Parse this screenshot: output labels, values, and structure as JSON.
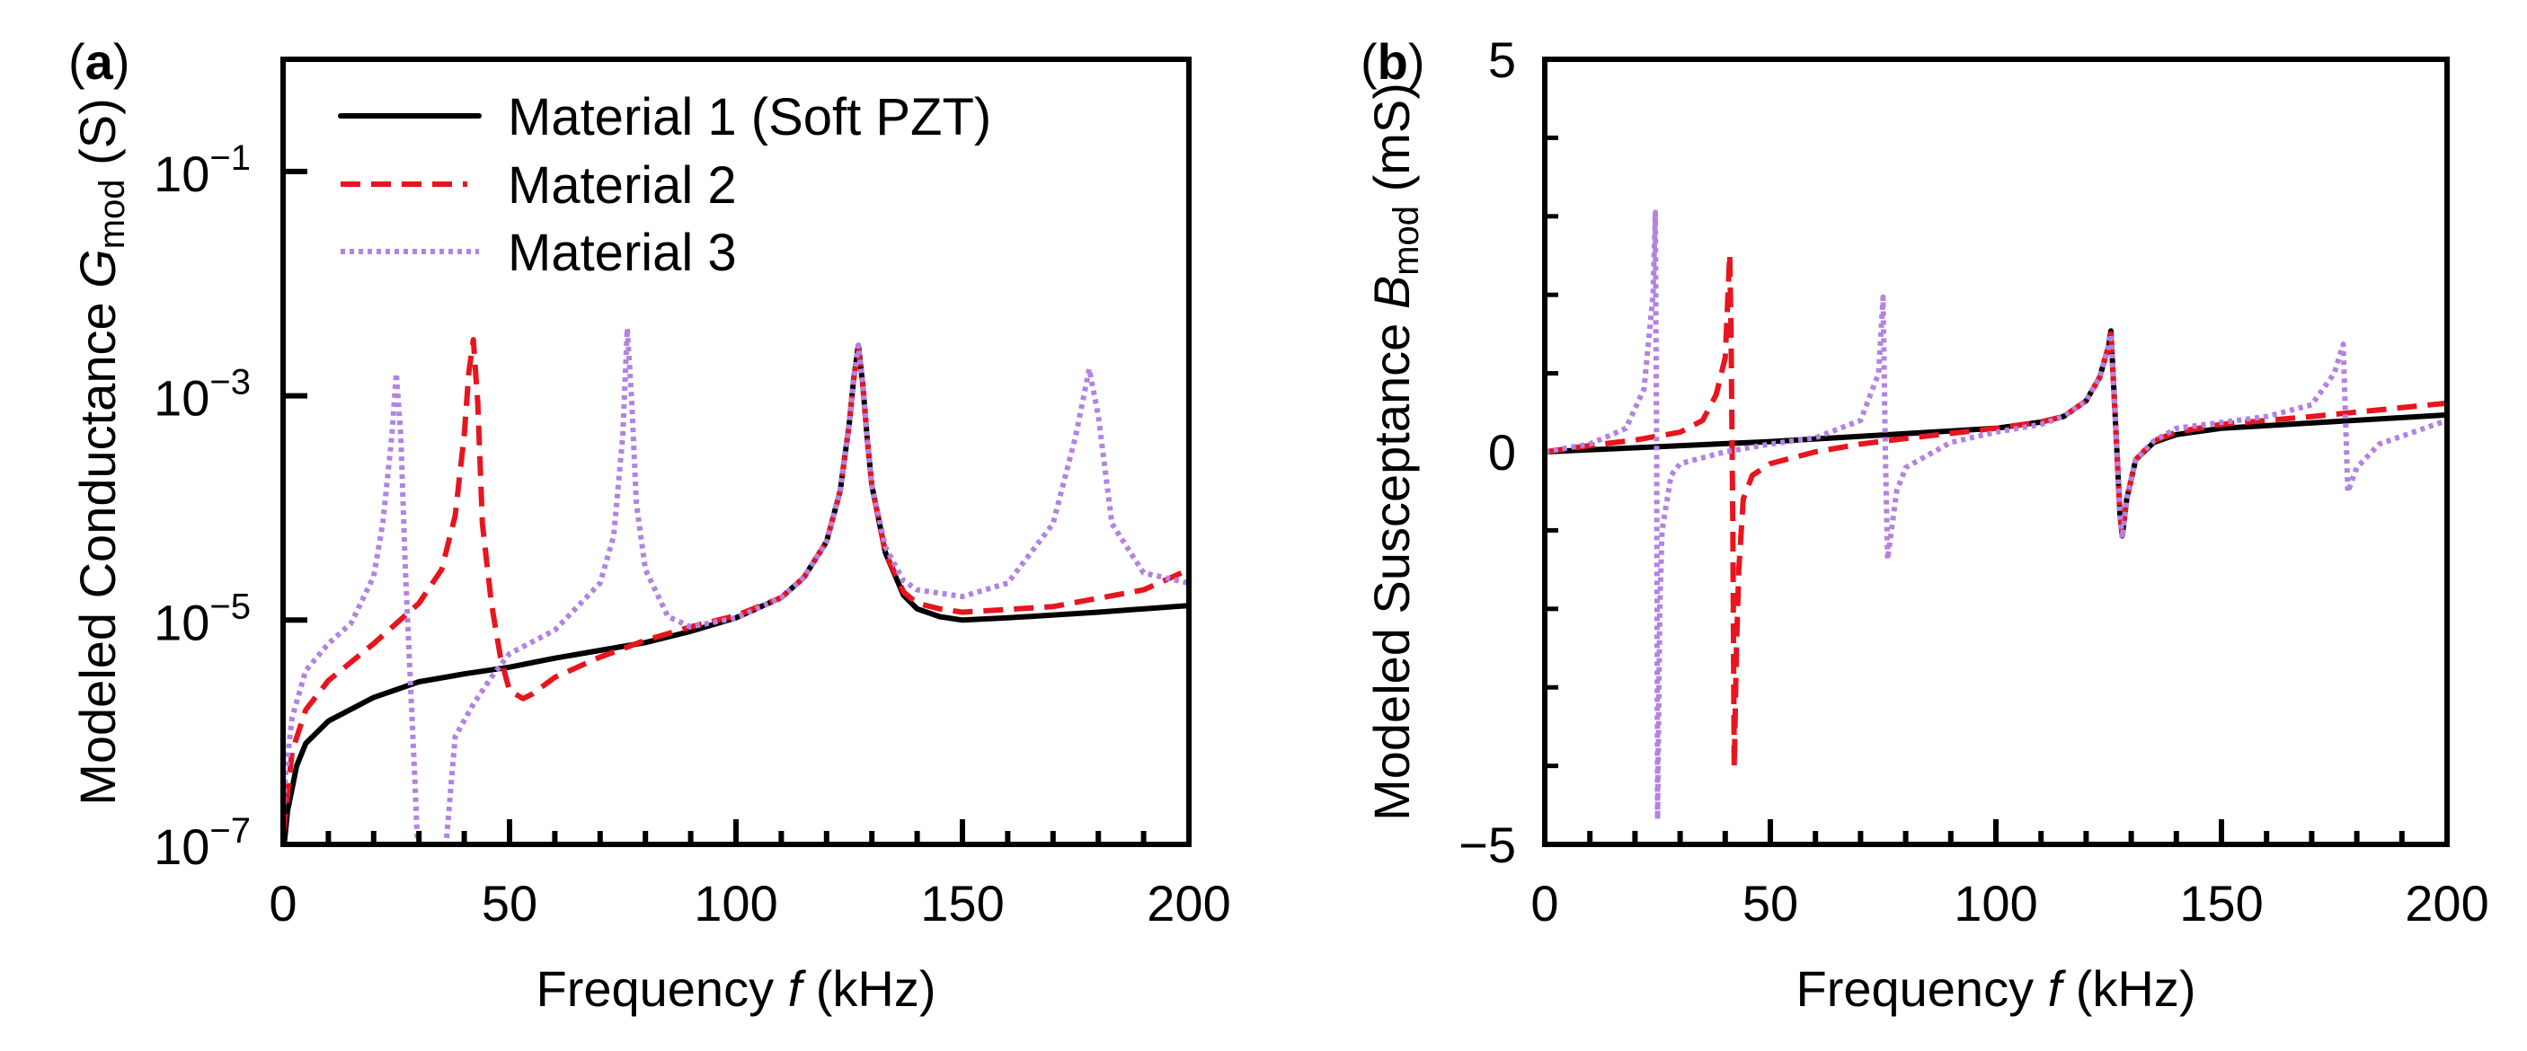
{
  "colors": {
    "material1": "#000000",
    "material2": "#e8141e",
    "material3": "#b382e3"
  },
  "chart_data": [
    {
      "panel": "a",
      "panel_label": {
        "open": "(",
        "letter": "a",
        "close": ")"
      },
      "type": "line",
      "y_scale": "log",
      "xlabel": {
        "pre": "Frequency ",
        "sym": "f",
        "post": " (kHz)"
      },
      "ylabel": {
        "pre": "Modeled Conductance ",
        "sym": "G",
        "sub": "mod",
        "post": " (S)"
      },
      "xlim": [
        0,
        200
      ],
      "ylim_log10": [
        -7,
        0
      ],
      "xticks": [
        "0",
        "50",
        "100",
        "150",
        "200"
      ],
      "xtick_values": [
        0,
        50,
        100,
        150,
        200
      ],
      "yticks": [
        {
          "base": "10",
          "exp": "−1",
          "v": -1
        },
        {
          "base": "10",
          "exp": "−3",
          "v": -3
        },
        {
          "base": "10",
          "exp": "−5",
          "v": -5
        },
        {
          "base": "10",
          "exp": "−7",
          "v": -7
        }
      ],
      "legend": {
        "position": "top-left",
        "entries": [
          "Material 1 (Soft PZT)",
          "Material 2",
          "Material 3"
        ]
      },
      "series": [
        {
          "name": "Material 1 (Soft PZT)",
          "style": "solid",
          "color_key": "material1",
          "x": [
            0,
            0.5,
            1,
            2,
            3,
            5,
            10,
            20,
            30,
            40,
            50,
            60,
            70,
            80,
            90,
            100,
            110,
            115,
            120,
            123,
            125,
            126,
            127,
            128,
            129,
            130,
            133,
            137,
            140,
            145,
            150,
            160,
            180,
            200
          ],
          "y_log10": [
            -7.1,
            -6.9,
            -6.7,
            -6.5,
            -6.3,
            -6.1,
            -5.9,
            -5.69,
            -5.55,
            -5.48,
            -5.42,
            -5.34,
            -5.27,
            -5.2,
            -5.1,
            -4.98,
            -4.8,
            -4.62,
            -4.3,
            -3.85,
            -3.25,
            -2.85,
            -2.55,
            -2.9,
            -3.4,
            -3.8,
            -4.4,
            -4.78,
            -4.9,
            -4.97,
            -5.0,
            -4.98,
            -4.93,
            -4.87
          ]
        },
        {
          "name": "Material 2",
          "style": "dashed",
          "color_key": "material2",
          "x": [
            0,
            0.5,
            2,
            5,
            10,
            20,
            30,
            35,
            38,
            40,
            41,
            42,
            43,
            44,
            46,
            48,
            50,
            53,
            55,
            60,
            70,
            80,
            90,
            100,
            110,
            115,
            120,
            123,
            125,
            126,
            127,
            128,
            129,
            130,
            133,
            137,
            140,
            145,
            150,
            170,
            190,
            200
          ],
          "y_log10": [
            -6.9,
            -6.73,
            -6.17,
            -5.8,
            -5.54,
            -5.21,
            -4.85,
            -4.55,
            -4.07,
            -3.35,
            -2.8,
            -2.5,
            -3.07,
            -4.14,
            -4.85,
            -5.33,
            -5.63,
            -5.7,
            -5.66,
            -5.51,
            -5.33,
            -5.18,
            -5.06,
            -4.96,
            -4.8,
            -4.62,
            -4.3,
            -3.85,
            -3.25,
            -2.85,
            -2.6,
            -2.9,
            -3.4,
            -3.8,
            -4.4,
            -4.75,
            -4.85,
            -4.9,
            -4.93,
            -4.88,
            -4.73,
            -4.55
          ]
        },
        {
          "name": "Material 3",
          "style": "dotted",
          "color_key": "material3",
          "x": [
            0,
            0.5,
            2,
            5,
            10,
            15,
            20,
            22,
            24,
            25,
            26,
            27,
            28,
            29,
            30,
            35,
            36,
            38,
            42,
            46,
            50,
            60,
            70,
            73,
            75,
            76,
            77,
            78,
            80,
            85,
            90,
            100,
            110,
            115,
            120,
            123,
            125,
            126,
            127,
            128,
            129,
            130,
            133,
            137,
            140,
            150,
            160,
            170,
            175,
            178,
            180,
            183,
            190,
            200
          ],
          "y_log10": [
            -6.7,
            -6.4,
            -5.87,
            -5.45,
            -5.21,
            -5.03,
            -4.61,
            -4.14,
            -3.36,
            -2.8,
            -3.36,
            -4.55,
            -5.45,
            -6.34,
            -7.3,
            -7.3,
            -7.0,
            -6.04,
            -5.75,
            -5.51,
            -5.3,
            -5.09,
            -4.67,
            -4.25,
            -3.36,
            -2.4,
            -3.07,
            -3.96,
            -4.55,
            -4.97,
            -5.06,
            -4.98,
            -4.8,
            -4.62,
            -4.3,
            -3.85,
            -3.25,
            -2.85,
            -2.55,
            -2.9,
            -3.4,
            -3.8,
            -4.35,
            -4.65,
            -4.73,
            -4.79,
            -4.67,
            -4.14,
            -3.36,
            -2.76,
            -3.18,
            -4.14,
            -4.58,
            -4.67
          ]
        }
      ]
    },
    {
      "panel": "b",
      "panel_label": {
        "open": "(",
        "letter": "b",
        "close": ")"
      },
      "type": "line",
      "y_scale": "linear",
      "xlabel": {
        "pre": "Frequency ",
        "sym": "f",
        "post": " (kHz)"
      },
      "ylabel": {
        "pre": "Modeled Susceptance ",
        "sym": "B",
        "sub": "mod",
        "post": " (mS)"
      },
      "xlim": [
        0,
        200
      ],
      "ylim": [
        -5,
        5
      ],
      "xticks": [
        "0",
        "50",
        "100",
        "150",
        "200"
      ],
      "xtick_values": [
        0,
        50,
        100,
        150,
        200
      ],
      "yticks": [
        {
          "label": "5",
          "v": 5
        },
        {
          "label": "0",
          "v": 0
        },
        {
          "label": "−5",
          "v": -5
        }
      ],
      "series": [
        {
          "name": "Material 1 (Soft PZT)",
          "style": "solid",
          "color_key": "material1",
          "x": [
            0,
            50,
            100,
            110,
            115,
            120,
            123,
            125,
            125.5,
            126.5,
            127.5,
            128,
            129,
            131,
            135,
            140,
            150,
            200
          ],
          "y": [
            0,
            0.13,
            0.3,
            0.38,
            0.45,
            0.65,
            0.95,
            1.35,
            1.54,
            0.4,
            -0.8,
            -1.07,
            -0.6,
            -0.1,
            0.12,
            0.22,
            0.3,
            0.47
          ]
        },
        {
          "name": "Material 2",
          "style": "dashed",
          "color_key": "material2",
          "x": [
            0,
            10,
            20,
            30,
            35,
            38,
            40,
            41,
            41.3,
            41.7,
            42,
            42.5,
            43,
            44,
            46,
            50,
            60,
            70,
            80,
            100,
            110,
            115,
            120,
            123,
            125,
            125.5,
            126.5,
            127.5,
            128,
            129,
            131,
            135,
            140,
            150,
            170,
            200
          ],
          "y": [
            0,
            0.08,
            0.15,
            0.25,
            0.4,
            0.73,
            1.2,
            2.52,
            1.5,
            -1.0,
            -4.02,
            -2.5,
            -1.5,
            -0.6,
            -0.3,
            -0.15,
            0.0,
            0.1,
            0.17,
            0.3,
            0.38,
            0.45,
            0.65,
            0.95,
            1.35,
            1.5,
            0.4,
            -0.8,
            -1.05,
            -0.6,
            -0.1,
            0.14,
            0.25,
            0.35,
            0.45,
            0.62
          ]
        },
        {
          "name": "Material 3",
          "style": "dotted",
          "color_key": "material3",
          "x": [
            0,
            10,
            18,
            22,
            24,
            24.5,
            24.8,
            25,
            25.5,
            26,
            28,
            30,
            40,
            50,
            60,
            70,
            74,
            75,
            75.5,
            76,
            78,
            80,
            90,
            100,
            110,
            115,
            120,
            123,
            125,
            125.5,
            126.5,
            127.5,
            128,
            129,
            131,
            135,
            140,
            160,
            170,
            175,
            177,
            177.5,
            178,
            180,
            185,
            200
          ],
          "y": [
            0,
            0.1,
            0.3,
            0.8,
            2.0,
            3.05,
            0.0,
            -4.68,
            -2.0,
            -1.0,
            -0.3,
            -0.15,
            0.0,
            0.1,
            0.18,
            0.4,
            1.0,
            1.97,
            0.0,
            -1.37,
            -0.5,
            -0.2,
            0.12,
            0.25,
            0.35,
            0.45,
            0.65,
            0.95,
            1.35,
            1.5,
            0.4,
            -0.8,
            -1.1,
            -0.6,
            -0.1,
            0.14,
            0.3,
            0.45,
            0.6,
            1.0,
            1.37,
            0.4,
            -0.51,
            -0.2,
            0.1,
            0.4
          ]
        }
      ]
    }
  ]
}
